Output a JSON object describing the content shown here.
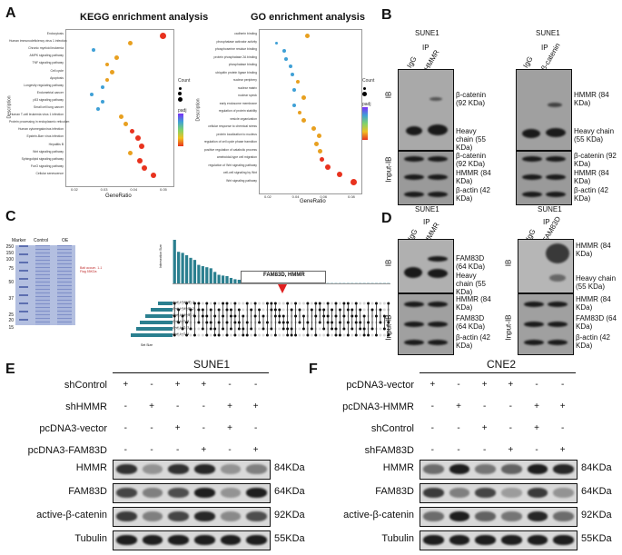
{
  "panel_letters": {
    "a": "A",
    "b": "B",
    "c": "C",
    "d": "D",
    "e": "E",
    "f": "F"
  },
  "kegg": {
    "title": "KEGG enrichment analysis",
    "ylabel": "Description",
    "xlabel": "GeneRatio",
    "legend_count": "Count",
    "legend_padj": "padj",
    "terms": [
      "Endocytosis",
      "Human immunodeficiency virus 1 infection",
      "Chronic myeloid leukemia",
      "AMPK signaling pathway",
      "TNF signaling pathway",
      "Cell cycle",
      "Apoptosis",
      "Longevity regulating pathway",
      "Endometrial cancer",
      "p53 signaling pathway",
      "Small cell lung cancer",
      "Human T-cell leukemia virus 1 infection",
      "Protein processing in endoplasmic reticulum",
      "Human cytomegalovirus infection",
      "Epstein-Barr virus infection",
      "Hepatitis B",
      "Wnt signaling pathway",
      "Sphingolipid signaling pathway",
      "FoxO signaling pathway",
      "Cellular senescence"
    ],
    "xticks": [
      "0.02",
      "0.03",
      "0.04",
      "0.05"
    ]
  },
  "go": {
    "title": "GO enrichment analysis",
    "ylabel": "Description",
    "xlabel": "GeneRatio",
    "legend_count": "Count",
    "legend_padj": "padj",
    "terms": [
      "cadherin binding",
      "phosphatase activator activity",
      "phosphoserine residue binding",
      "protein phosphatase 2A binding",
      "phosphatase binding",
      "ubiquitin protein ligase binding",
      "nuclear periphery",
      "nuclear matrix",
      "nuclear speck",
      "early endosome membrane",
      "regulation of protein stability",
      "vesicle organization",
      "cellular response to chemical stress",
      "protein localization to nucleus",
      "regulation of cell cycle phase transition",
      "positive regulation of catabolic process",
      "ameboidal-type cell migration",
      "regulation of Wnt signaling pathway",
      "cell-cell signaling by Wnt",
      "Wnt signaling pathway"
    ],
    "xticks": [
      "0.02",
      "0.04",
      "0.06",
      "0.08"
    ]
  },
  "b": {
    "cell": "SUNE1",
    "ip": "IP",
    "ib": "IB",
    "input_ib": "Input-IB",
    "left_lanes": [
      "IgG",
      "HMMR"
    ],
    "right_lanes": [
      "IgG",
      "β-catenin"
    ],
    "left_ip": [
      "β-catenin (92 KDa)",
      "Heavy chain (55 KDa)"
    ],
    "left_input": [
      "β-catenin (92 KDa)",
      "HMMR (84 KDa)",
      "β-actin (42 KDa)"
    ],
    "right_ip": [
      "HMMR (84 KDa)",
      "Heavy chain (55 KDa)"
    ],
    "right_input": [
      "β-catenin (92 KDa)",
      "HMMR (84 KDa)",
      "β-actin (42 KDa)"
    ]
  },
  "c": {
    "gel_labels": [
      "Marker",
      "Control",
      "OE"
    ],
    "mw": [
      "250",
      "150",
      "100",
      "75",
      "50",
      "37",
      "25",
      "20",
      "15"
    ],
    "band_note": "Bait accum. 1-1 Flag 55KDa",
    "highlight": "FAM83D, HMMR",
    "sets": [
      "Anti-HMMR-3",
      "Anti-HMMR-2",
      "Anti-HMMR-1",
      "Anti-IgG-3",
      "Anti-IgG-2",
      "Anti-IgG-1"
    ],
    "set_size_label": "Set Size",
    "intersection_label": "Intersection Size",
    "bar_values": [
      167,
      121,
      117,
      108,
      98,
      90,
      71,
      66,
      62,
      58,
      44,
      33,
      30,
      28,
      21,
      16,
      14,
      12,
      10,
      9,
      8,
      7,
      6,
      5,
      5,
      4,
      4,
      3,
      3,
      3,
      2,
      2,
      2,
      2,
      2,
      2,
      1,
      1,
      1,
      1,
      1,
      1,
      1,
      1,
      1,
      1,
      1,
      1,
      1,
      1,
      1,
      1,
      1,
      1
    ]
  },
  "d": {
    "cell": "SUNE1",
    "ip": "IP",
    "ib": "IB",
    "input_ib": "Input-IB",
    "left_lanes": [
      "IgG",
      "HMMR"
    ],
    "right_lanes": [
      "IgG",
      "FAM83D"
    ],
    "left_ip": [
      "FAM83D (64 KDa)",
      "Heavy chain (55 KDa)"
    ],
    "left_input": [
      "HMMR (84 KDa)",
      "FAM83D (64 KDa)",
      "β-actin (42 KDa)"
    ],
    "right_ip": [
      "HMMR (84 KDa)",
      "Heavy chain (55 KDa)"
    ],
    "right_input": [
      "HMMR (84 KDa)",
      "FAM83D (64 KDa)",
      "β-actin (42 KDa)"
    ]
  },
  "e": {
    "cell": "SUNE1",
    "conditions": [
      "shControl",
      "shHMMR",
      "pcDNA3-vector",
      "pcDNA3-FAM83D"
    ],
    "signs": [
      [
        "+",
        "-",
        "+",
        "+",
        "-",
        "-"
      ],
      [
        "-",
        "+",
        "-",
        "-",
        "+",
        "+"
      ],
      [
        "-",
        "-",
        "+",
        "-",
        "+",
        "-"
      ],
      [
        "-",
        "-",
        "-",
        "+",
        "-",
        "+"
      ]
    ],
    "rows": [
      "HMMR",
      "FAM83D",
      "active-β-catenin",
      "Tubulin"
    ],
    "kda": [
      "84KDa",
      "64KDa",
      "92KDa",
      "55KDa"
    ]
  },
  "f": {
    "cell": "CNE2",
    "conditions": [
      "pcDNA3-vector",
      "pcDNA3-HMMR",
      "shControl",
      "shFAM83D"
    ],
    "signs": [
      [
        "+",
        "-",
        "+",
        "+",
        "-",
        "-"
      ],
      [
        "-",
        "+",
        "-",
        "-",
        "+",
        "+"
      ],
      [
        "-",
        "-",
        "+",
        "-",
        "+",
        "-"
      ],
      [
        "-",
        "-",
        "-",
        "+",
        "-",
        "+"
      ]
    ],
    "rows": [
      "HMMR",
      "FAM83D",
      "active-β-catenin",
      "Tubulin"
    ],
    "kda": [
      "84KDa",
      "64KDa",
      "92KDa",
      "55KDa"
    ]
  },
  "colors": {
    "dot_high": "#e8321e",
    "dot_mid": "#e8a020",
    "dot_low": "#3fa0d6",
    "teal": "#2a7f8f",
    "arrow": "#e02020"
  }
}
